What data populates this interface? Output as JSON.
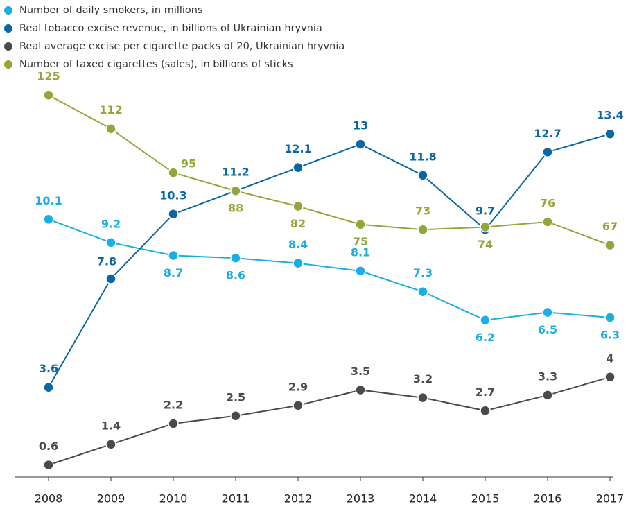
{
  "chart_data": {
    "type": "line",
    "categories": [
      "2008",
      "2009",
      "2010",
      "2011",
      "2012",
      "2013",
      "2014",
      "2015",
      "2016",
      "2017"
    ],
    "series": [
      {
        "name": "Number of daily smokers, in millions",
        "color": "#1aaee6",
        "values": [
          10.1,
          9.2,
          8.7,
          8.6,
          8.4,
          8.1,
          7.3,
          6.2,
          6.5,
          6.3
        ]
      },
      {
        "name": "Real tobacco excise revenue, in billions of Ukrainian hryvnia",
        "color": "#0b67a3",
        "values": [
          3.6,
          7.8,
          10.3,
          11.2,
          12.1,
          13,
          11.8,
          9.7,
          12.7,
          13.4
        ]
      },
      {
        "name": "Real average excise per cigarette packs of 20, Ukrainian hryvnia",
        "color": "#4a4a4a",
        "values": [
          0.6,
          1.4,
          2.2,
          2.5,
          2.9,
          3.5,
          3.2,
          2.7,
          3.3,
          4
        ]
      },
      {
        "name": "Number of taxed cigarettes (sales), in billions of sticks",
        "color": "#8fa83a",
        "axis": "y2",
        "values": [
          125,
          112,
          95,
          88,
          82,
          75,
          73,
          74,
          76,
          67
        ]
      }
    ],
    "ylim": [
      0,
      15
    ],
    "y2lim": [
      -24,
      126
    ],
    "legend": "top-left"
  }
}
